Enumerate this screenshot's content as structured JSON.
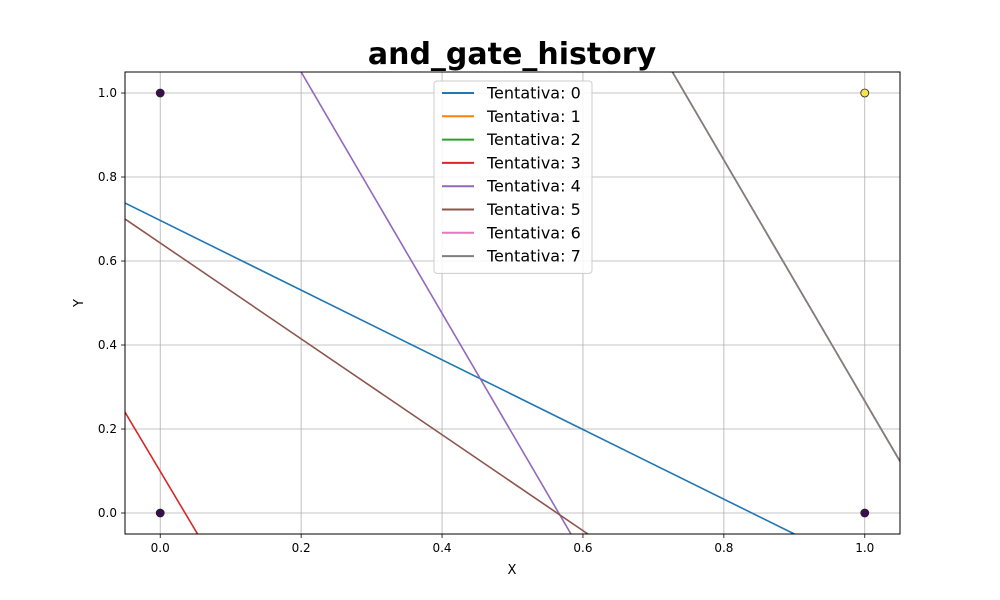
{
  "chart_data": {
    "type": "line",
    "title": "and_gate_history",
    "xlabel": "X",
    "ylabel": "Y",
    "xlim": [
      -0.05,
      1.05
    ],
    "ylim": [
      -0.05,
      1.05
    ],
    "xticks": [
      0.0,
      0.2,
      0.4,
      0.6,
      0.8,
      1.0
    ],
    "yticks": [
      0.0,
      0.2,
      0.4,
      0.6,
      0.8,
      1.0
    ],
    "grid": true,
    "legend_position": "upper-center",
    "points": [
      {
        "x": 0,
        "y": 1,
        "color": "#3b0f4f"
      },
      {
        "x": 0,
        "y": 0,
        "color": "#3b0f4f"
      },
      {
        "x": 1,
        "y": 0,
        "color": "#3b0f4f"
      },
      {
        "x": 1,
        "y": 1,
        "color": "#f5e34a"
      }
    ],
    "series": [
      {
        "name": "Tentativa: 0",
        "color": "#1f77b4",
        "x": [
          -0.05,
          0.9
        ],
        "y": [
          0.738,
          -0.05
        ]
      },
      {
        "name": "Tentativa: 1",
        "color": "#ff7f0e",
        "x": [
          0.727,
          1.05
        ],
        "y": [
          1.05,
          0.123
        ]
      },
      {
        "name": "Tentativa: 2",
        "color": "#2ca02c",
        "x": [
          0.727,
          1.05
        ],
        "y": [
          1.05,
          0.123
        ]
      },
      {
        "name": "Tentativa: 3",
        "color": "#d62728",
        "x": [
          -0.05,
          0.053
        ],
        "y": [
          0.24,
          -0.05
        ]
      },
      {
        "name": "Tentativa: 4",
        "color": "#9467bd",
        "x": [
          0.2,
          0.583
        ],
        "y": [
          1.05,
          -0.05
        ]
      },
      {
        "name": "Tentativa: 5",
        "color": "#8c564b",
        "x": [
          -0.05,
          0.607
        ],
        "y": [
          0.7,
          -0.05
        ]
      },
      {
        "name": "Tentativa: 6",
        "color": "#e377c2",
        "x": [
          0.727,
          1.05
        ],
        "y": [
          1.05,
          0.123
        ]
      },
      {
        "name": "Tentativa: 7",
        "color": "#7f7f7f",
        "x": [
          0.727,
          1.05
        ],
        "y": [
          1.05,
          0.123
        ]
      }
    ]
  }
}
